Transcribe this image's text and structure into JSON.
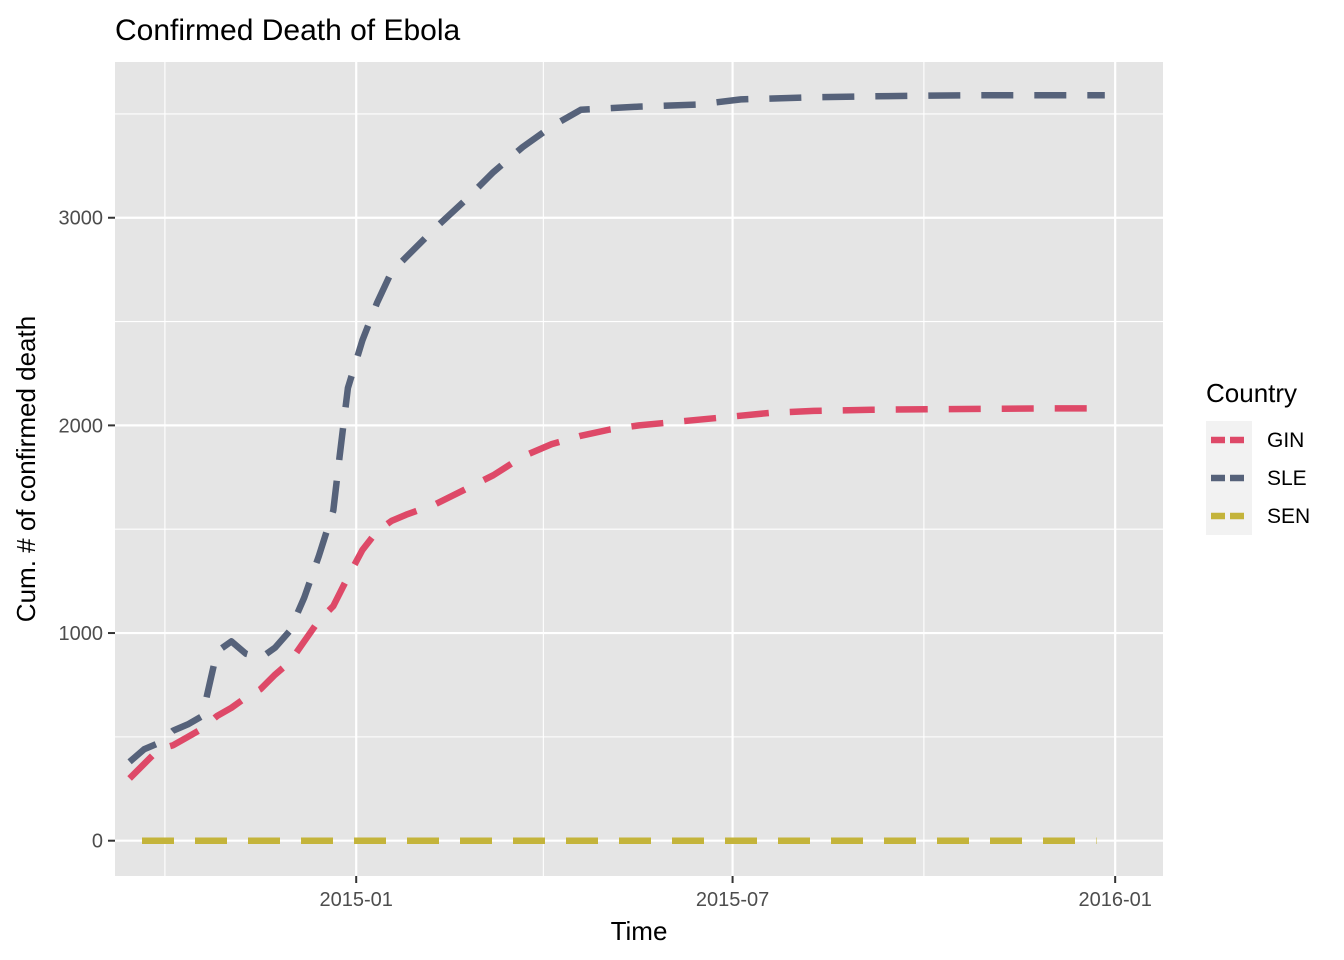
{
  "chart_data": {
    "type": "line",
    "title": "Confirmed Death of Ebola",
    "xlabel": "Time",
    "ylabel": "Cum. # of confirmed death",
    "x_type": "date",
    "xlim": [
      "2014-09-07",
      "2016-01-24"
    ],
    "ylim": [
      -170,
      3750
    ],
    "x_ticks": [
      {
        "value": "2015-01-01",
        "label": "2015-01"
      },
      {
        "value": "2015-07-01",
        "label": "2015-07"
      },
      {
        "value": "2016-01-01",
        "label": "2016-01"
      }
    ],
    "x_minor_ticks": [
      "2014-10-01",
      "2015-04-01",
      "2015-10-01"
    ],
    "y_ticks": [
      0,
      1000,
      2000,
      3000
    ],
    "y_minor_ticks": [
      500,
      1500,
      2500,
      3500
    ],
    "grid": true,
    "panel_background": "#e5e5e5",
    "grid_color": "#ffffff",
    "legend": {
      "title": "Country",
      "position": "right"
    },
    "series": [
      {
        "name": "GIN",
        "color": "#de4968",
        "points": [
          [
            "2014-09-14",
            300
          ],
          [
            "2014-09-21",
            370
          ],
          [
            "2014-09-28",
            440
          ],
          [
            "2014-10-05",
            460
          ],
          [
            "2014-10-12",
            500
          ],
          [
            "2014-10-19",
            540
          ],
          [
            "2014-10-26",
            600
          ],
          [
            "2014-11-02",
            640
          ],
          [
            "2014-11-09",
            690
          ],
          [
            "2014-11-16",
            730
          ],
          [
            "2014-11-23",
            800
          ],
          [
            "2014-11-30",
            860
          ],
          [
            "2014-12-07",
            960
          ],
          [
            "2014-12-14",
            1060
          ],
          [
            "2014-12-21",
            1130
          ],
          [
            "2014-12-28",
            1270
          ],
          [
            "2015-01-04",
            1400
          ],
          [
            "2015-01-11",
            1490
          ],
          [
            "2015-01-18",
            1540
          ],
          [
            "2015-01-25",
            1570
          ],
          [
            "2015-02-08",
            1620
          ],
          [
            "2015-02-22",
            1690
          ],
          [
            "2015-03-08",
            1760
          ],
          [
            "2015-03-22",
            1850
          ],
          [
            "2015-04-05",
            1910
          ],
          [
            "2015-04-19",
            1950
          ],
          [
            "2015-05-03",
            1980
          ],
          [
            "2015-05-17",
            2000
          ],
          [
            "2015-06-07",
            2020
          ],
          [
            "2015-06-28",
            2040
          ],
          [
            "2015-07-19",
            2060
          ],
          [
            "2015-08-09",
            2070
          ],
          [
            "2015-09-06",
            2075
          ],
          [
            "2015-10-04",
            2078
          ],
          [
            "2015-11-01",
            2080
          ],
          [
            "2015-12-01",
            2082
          ],
          [
            "2015-12-27",
            2082
          ]
        ]
      },
      {
        "name": "SLE",
        "color": "#56627a",
        "points": [
          [
            "2014-09-14",
            380
          ],
          [
            "2014-09-21",
            440
          ],
          [
            "2014-09-28",
            470
          ],
          [
            "2014-10-05",
            530
          ],
          [
            "2014-10-12",
            560
          ],
          [
            "2014-10-19",
            600
          ],
          [
            "2014-10-26",
            910
          ],
          [
            "2014-11-02",
            960
          ],
          [
            "2014-11-09",
            900
          ],
          [
            "2014-11-16",
            880
          ],
          [
            "2014-11-23",
            930
          ],
          [
            "2014-11-30",
            1010
          ],
          [
            "2014-12-07",
            1170
          ],
          [
            "2014-12-14",
            1370
          ],
          [
            "2014-12-21",
            1590
          ],
          [
            "2014-12-24",
            1850
          ],
          [
            "2014-12-28",
            2180
          ],
          [
            "2015-01-04",
            2410
          ],
          [
            "2015-01-11",
            2590
          ],
          [
            "2015-01-18",
            2740
          ],
          [
            "2015-01-25",
            2810
          ],
          [
            "2015-02-08",
            2950
          ],
          [
            "2015-02-22",
            3080
          ],
          [
            "2015-03-08",
            3220
          ],
          [
            "2015-03-22",
            3340
          ],
          [
            "2015-04-05",
            3440
          ],
          [
            "2015-04-19",
            3520
          ],
          [
            "2015-05-17",
            3535
          ],
          [
            "2015-06-14",
            3545
          ],
          [
            "2015-07-05",
            3570
          ],
          [
            "2015-08-09",
            3580
          ],
          [
            "2015-09-06",
            3585
          ],
          [
            "2015-10-04",
            3588
          ],
          [
            "2015-11-01",
            3590
          ],
          [
            "2015-12-01",
            3590
          ],
          [
            "2015-12-27",
            3590
          ]
        ]
      },
      {
        "name": "SEN",
        "color": "#c4b43b",
        "points": [
          [
            "2014-09-20",
            0
          ],
          [
            "2015-12-23",
            0
          ]
        ]
      }
    ]
  }
}
